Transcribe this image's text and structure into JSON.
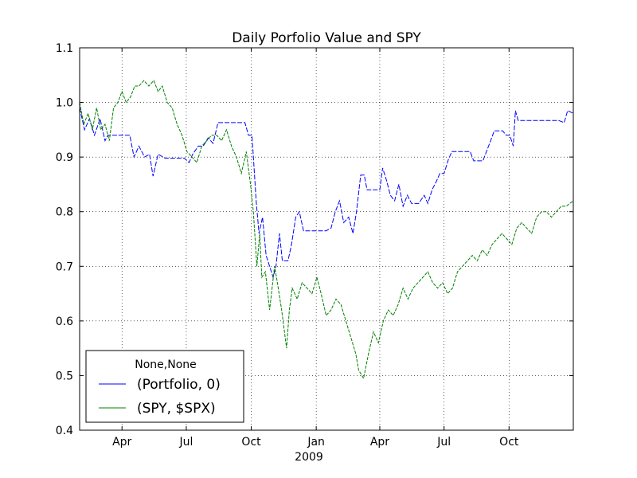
{
  "chart_data": {
    "type": "line",
    "title": "Daily Porfolio Value and SPY",
    "xlabel": "",
    "ylabel": "",
    "ylim": [
      0.4,
      1.1
    ],
    "yticks": [
      "0.4",
      "0.5",
      "0.6",
      "0.7",
      "0.8",
      "0.9",
      "1.0",
      "1.1"
    ],
    "xlim": [
      "2008-02-01",
      "2009-12-31"
    ],
    "xticks": [
      {
        "date": "2008-04-01",
        "label": "Apr"
      },
      {
        "date": "2008-07-01",
        "label": "Jul"
      },
      {
        "date": "2008-10-01",
        "label": "Oct"
      },
      {
        "date": "2009-01-01",
        "label": "Jan"
      },
      {
        "date": "2009-04-01",
        "label": "Apr"
      },
      {
        "date": "2009-07-01",
        "label": "Jul"
      },
      {
        "date": "2009-10-01",
        "label": "Oct"
      }
    ],
    "x_sublabel": "2009",
    "grid": true,
    "legend": {
      "title": "None,None",
      "position": "lower-left"
    },
    "series": [
      {
        "name": "(Portfolio, 0)",
        "color": "#0000ff",
        "points": [
          [
            "2008-02-01",
            0.99
          ],
          [
            "2008-02-08",
            0.95
          ],
          [
            "2008-02-15",
            0.97
          ],
          [
            "2008-02-22",
            0.94
          ],
          [
            "2008-03-01",
            0.97
          ],
          [
            "2008-03-08",
            0.93
          ],
          [
            "2008-03-12",
            0.94
          ],
          [
            "2008-03-20",
            0.94
          ],
          [
            "2008-03-28",
            0.94
          ],
          [
            "2008-04-05",
            0.94
          ],
          [
            "2008-04-12",
            0.94
          ],
          [
            "2008-04-18",
            0.9
          ],
          [
            "2008-04-25",
            0.92
          ],
          [
            "2008-05-03",
            0.9
          ],
          [
            "2008-05-10",
            0.905
          ],
          [
            "2008-05-15",
            0.865
          ],
          [
            "2008-05-22",
            0.905
          ],
          [
            "2008-06-01",
            0.898
          ],
          [
            "2008-06-15",
            0.898
          ],
          [
            "2008-06-28",
            0.898
          ],
          [
            "2008-07-05",
            0.89
          ],
          [
            "2008-07-10",
            0.905
          ],
          [
            "2008-07-18",
            0.92
          ],
          [
            "2008-07-25",
            0.92
          ],
          [
            "2008-08-01",
            0.935
          ],
          [
            "2008-08-08",
            0.925
          ],
          [
            "2008-08-15",
            0.963
          ],
          [
            "2008-08-30",
            0.963
          ],
          [
            "2008-09-15",
            0.963
          ],
          [
            "2008-09-22",
            0.963
          ],
          [
            "2008-09-27",
            0.94
          ],
          [
            "2008-10-02",
            0.94
          ],
          [
            "2008-10-05",
            0.88
          ],
          [
            "2008-10-08",
            0.82
          ],
          [
            "2008-10-12",
            0.76
          ],
          [
            "2008-10-17",
            0.79
          ],
          [
            "2008-10-22",
            0.72
          ],
          [
            "2008-10-27",
            0.7
          ],
          [
            "2008-11-01",
            0.68
          ],
          [
            "2008-11-05",
            0.7
          ],
          [
            "2008-11-10",
            0.76
          ],
          [
            "2008-11-14",
            0.71
          ],
          [
            "2008-11-22",
            0.71
          ],
          [
            "2008-11-27",
            0.74
          ],
          [
            "2008-12-03",
            0.79
          ],
          [
            "2008-12-08",
            0.8
          ],
          [
            "2008-12-14",
            0.765
          ],
          [
            "2008-12-31",
            0.765
          ],
          [
            "2009-01-15",
            0.765
          ],
          [
            "2009-01-22",
            0.77
          ],
          [
            "2009-01-28",
            0.8
          ],
          [
            "2009-02-03",
            0.82
          ],
          [
            "2009-02-09",
            0.78
          ],
          [
            "2009-02-16",
            0.79
          ],
          [
            "2009-02-22",
            0.76
          ],
          [
            "2009-02-27",
            0.8
          ],
          [
            "2009-03-05",
            0.867
          ],
          [
            "2009-03-10",
            0.867
          ],
          [
            "2009-03-14",
            0.84
          ],
          [
            "2009-03-25",
            0.84
          ],
          [
            "2009-04-01",
            0.84
          ],
          [
            "2009-04-05",
            0.88
          ],
          [
            "2009-04-10",
            0.86
          ],
          [
            "2009-04-16",
            0.83
          ],
          [
            "2009-04-22",
            0.82
          ],
          [
            "2009-04-28",
            0.85
          ],
          [
            "2009-05-04",
            0.81
          ],
          [
            "2009-05-10",
            0.83
          ],
          [
            "2009-05-16",
            0.815
          ],
          [
            "2009-05-26",
            0.815
          ],
          [
            "2009-06-03",
            0.83
          ],
          [
            "2009-06-08",
            0.815
          ],
          [
            "2009-06-14",
            0.84
          ],
          [
            "2009-06-20",
            0.855
          ],
          [
            "2009-06-25",
            0.87
          ],
          [
            "2009-07-01",
            0.87
          ],
          [
            "2009-07-07",
            0.895
          ],
          [
            "2009-07-12",
            0.91
          ],
          [
            "2009-07-25",
            0.91
          ],
          [
            "2009-08-07",
            0.91
          ],
          [
            "2009-08-12",
            0.893
          ],
          [
            "2009-08-25",
            0.893
          ],
          [
            "2009-08-30",
            0.91
          ],
          [
            "2009-09-05",
            0.93
          ],
          [
            "2009-09-10",
            0.948
          ],
          [
            "2009-09-22",
            0.948
          ],
          [
            "2009-09-27",
            0.94
          ],
          [
            "2009-10-02",
            0.94
          ],
          [
            "2009-10-07",
            0.92
          ],
          [
            "2009-10-10",
            0.985
          ],
          [
            "2009-10-14",
            0.967
          ],
          [
            "2009-10-31",
            0.967
          ],
          [
            "2009-11-20",
            0.967
          ],
          [
            "2009-12-10",
            0.967
          ],
          [
            "2009-12-18",
            0.963
          ],
          [
            "2009-12-23",
            0.985
          ],
          [
            "2009-12-31",
            0.98
          ]
        ]
      },
      {
        "name": "(SPY, $SPX)",
        "color": "#008000",
        "points": [
          [
            "2008-02-01",
            1.0
          ],
          [
            "2008-02-07",
            0.96
          ],
          [
            "2008-02-13",
            0.98
          ],
          [
            "2008-02-19",
            0.95
          ],
          [
            "2008-02-25",
            0.99
          ],
          [
            "2008-03-02",
            0.95
          ],
          [
            "2008-03-08",
            0.96
          ],
          [
            "2008-03-14",
            0.93
          ],
          [
            "2008-03-20",
            0.99
          ],
          [
            "2008-03-26",
            1.0
          ],
          [
            "2008-04-01",
            1.02
          ],
          [
            "2008-04-07",
            1.0
          ],
          [
            "2008-04-13",
            1.01
          ],
          [
            "2008-04-19",
            1.03
          ],
          [
            "2008-04-25",
            1.03
          ],
          [
            "2008-05-02",
            1.04
          ],
          [
            "2008-05-09",
            1.03
          ],
          [
            "2008-05-16",
            1.04
          ],
          [
            "2008-05-22",
            1.02
          ],
          [
            "2008-05-28",
            1.03
          ],
          [
            "2008-06-04",
            1.0
          ],
          [
            "2008-06-11",
            0.99
          ],
          [
            "2008-06-18",
            0.96
          ],
          [
            "2008-06-25",
            0.94
          ],
          [
            "2008-07-02",
            0.91
          ],
          [
            "2008-07-09",
            0.9
          ],
          [
            "2008-07-16",
            0.89
          ],
          [
            "2008-07-23",
            0.92
          ],
          [
            "2008-07-30",
            0.93
          ],
          [
            "2008-08-06",
            0.94
          ],
          [
            "2008-08-13",
            0.94
          ],
          [
            "2008-08-20",
            0.93
          ],
          [
            "2008-08-27",
            0.95
          ],
          [
            "2008-09-03",
            0.92
          ],
          [
            "2008-09-10",
            0.9
          ],
          [
            "2008-09-17",
            0.87
          ],
          [
            "2008-09-24",
            0.91
          ],
          [
            "2008-09-30",
            0.85
          ],
          [
            "2008-10-04",
            0.8
          ],
          [
            "2008-10-09",
            0.7
          ],
          [
            "2008-10-13",
            0.76
          ],
          [
            "2008-10-16",
            0.68
          ],
          [
            "2008-10-21",
            0.69
          ],
          [
            "2008-10-27",
            0.62
          ],
          [
            "2008-11-03",
            0.7
          ],
          [
            "2008-11-07",
            0.67
          ],
          [
            "2008-11-13",
            0.62
          ],
          [
            "2008-11-20",
            0.55
          ],
          [
            "2008-11-24",
            0.62
          ],
          [
            "2008-11-28",
            0.66
          ],
          [
            "2008-12-05",
            0.64
          ],
          [
            "2008-12-12",
            0.67
          ],
          [
            "2008-12-19",
            0.66
          ],
          [
            "2008-12-26",
            0.65
          ],
          [
            "2009-01-02",
            0.68
          ],
          [
            "2009-01-08",
            0.65
          ],
          [
            "2009-01-15",
            0.61
          ],
          [
            "2009-01-22",
            0.62
          ],
          [
            "2009-01-29",
            0.64
          ],
          [
            "2009-02-05",
            0.63
          ],
          [
            "2009-02-12",
            0.6
          ],
          [
            "2009-02-19",
            0.57
          ],
          [
            "2009-02-26",
            0.54
          ],
          [
            "2009-03-02",
            0.51
          ],
          [
            "2009-03-09",
            0.495
          ],
          [
            "2009-03-16",
            0.54
          ],
          [
            "2009-03-23",
            0.58
          ],
          [
            "2009-03-30",
            0.56
          ],
          [
            "2009-04-06",
            0.6
          ],
          [
            "2009-04-13",
            0.62
          ],
          [
            "2009-04-20",
            0.61
          ],
          [
            "2009-04-27",
            0.63
          ],
          [
            "2009-05-04",
            0.66
          ],
          [
            "2009-05-11",
            0.64
          ],
          [
            "2009-05-18",
            0.66
          ],
          [
            "2009-05-25",
            0.67
          ],
          [
            "2009-06-01",
            0.68
          ],
          [
            "2009-06-08",
            0.69
          ],
          [
            "2009-06-15",
            0.67
          ],
          [
            "2009-06-22",
            0.66
          ],
          [
            "2009-06-29",
            0.67
          ],
          [
            "2009-07-06",
            0.65
          ],
          [
            "2009-07-13",
            0.66
          ],
          [
            "2009-07-20",
            0.69
          ],
          [
            "2009-07-27",
            0.7
          ],
          [
            "2009-08-03",
            0.71
          ],
          [
            "2009-08-10",
            0.72
          ],
          [
            "2009-08-17",
            0.71
          ],
          [
            "2009-08-24",
            0.73
          ],
          [
            "2009-08-31",
            0.72
          ],
          [
            "2009-09-07",
            0.74
          ],
          [
            "2009-09-14",
            0.75
          ],
          [
            "2009-09-21",
            0.76
          ],
          [
            "2009-09-28",
            0.75
          ],
          [
            "2009-10-05",
            0.74
          ],
          [
            "2009-10-12",
            0.77
          ],
          [
            "2009-10-19",
            0.78
          ],
          [
            "2009-10-26",
            0.77
          ],
          [
            "2009-11-02",
            0.76
          ],
          [
            "2009-11-09",
            0.79
          ],
          [
            "2009-11-16",
            0.8
          ],
          [
            "2009-11-23",
            0.8
          ],
          [
            "2009-11-30",
            0.79
          ],
          [
            "2009-12-07",
            0.8
          ],
          [
            "2009-12-14",
            0.81
          ],
          [
            "2009-12-21",
            0.81
          ],
          [
            "2009-12-31",
            0.82
          ]
        ]
      }
    ]
  }
}
